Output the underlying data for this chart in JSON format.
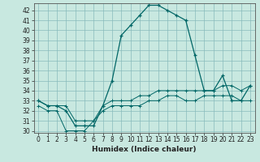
{
  "xlabel": "Humidex (Indice chaleur)",
  "background_color": "#c8e8e0",
  "grid_color": "#88bbbb",
  "line_color": "#006666",
  "xlim": [
    -0.5,
    23.5
  ],
  "ylim": [
    29.8,
    42.7
  ],
  "yticks": [
    30,
    31,
    32,
    33,
    34,
    35,
    36,
    37,
    38,
    39,
    40,
    41,
    42
  ],
  "xticks": [
    0,
    1,
    2,
    3,
    4,
    5,
    6,
    7,
    8,
    9,
    10,
    11,
    12,
    13,
    14,
    15,
    16,
    17,
    18,
    19,
    20,
    21,
    22,
    23
  ],
  "main_line": [
    33.0,
    32.5,
    32.5,
    32.0,
    30.5,
    30.5,
    30.5,
    32.5,
    35.0,
    39.5,
    40.5,
    41.5,
    42.5,
    42.5,
    42.0,
    41.5,
    41.0,
    37.5,
    34.0,
    34.0,
    35.5,
    33.0,
    33.0,
    34.5
  ],
  "low_line": [
    32.5,
    32.0,
    32.0,
    30.0,
    30.0,
    30.0,
    31.0,
    32.0,
    32.5,
    32.5,
    32.5,
    32.5,
    33.0,
    33.0,
    33.5,
    33.5,
    33.0,
    33.0,
    33.5,
    33.5,
    33.5,
    33.5,
    33.0,
    33.0
  ],
  "high_line": [
    33.0,
    32.5,
    32.5,
    32.5,
    31.0,
    31.0,
    31.0,
    32.5,
    33.0,
    33.0,
    33.0,
    33.5,
    33.5,
    34.0,
    34.0,
    34.0,
    34.0,
    34.0,
    34.0,
    34.0,
    34.5,
    34.5,
    34.0,
    34.5
  ],
  "tick_fontsize": 5.5,
  "xlabel_fontsize": 6.5
}
